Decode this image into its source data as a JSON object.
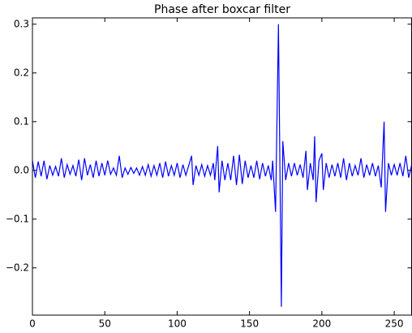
{
  "chart_data": {
    "type": "line",
    "title": "Phase after boxcar filter",
    "series": [
      {
        "name": null,
        "color": "#0000ff",
        "x": [
          0,
          2,
          4,
          6,
          8,
          10,
          12,
          14,
          16,
          18,
          20,
          22,
          24,
          26,
          28,
          30,
          32,
          34,
          36,
          38,
          40,
          42,
          44,
          46,
          48,
          50,
          52,
          54,
          56,
          58,
          60,
          62,
          64,
          66,
          68,
          70,
          72,
          74,
          76,
          78,
          80,
          82,
          84,
          86,
          88,
          90,
          92,
          94,
          96,
          98,
          100,
          102,
          104,
          106,
          108,
          110,
          111,
          113,
          115,
          117,
          119,
          121,
          123,
          125,
          126,
          128,
          129,
          131,
          133,
          135,
          137,
          139,
          141,
          143,
          145,
          147,
          149,
          151,
          153,
          155,
          157,
          159,
          161,
          163,
          165,
          166,
          168,
          170,
          172,
          173,
          175,
          177,
          179,
          181,
          183,
          185,
          187,
          189,
          190,
          192,
          194,
          195,
          196,
          198,
          200,
          201,
          203,
          205,
          207,
          209,
          211,
          213,
          215,
          217,
          219,
          221,
          223,
          225,
          227,
          229,
          231,
          233,
          235,
          237,
          239,
          241,
          243,
          244,
          246,
          248,
          250,
          252,
          254,
          256,
          258,
          260,
          262
        ],
        "values": [
          0.02,
          -0.015,
          0.018,
          -0.012,
          0.02,
          -0.018,
          0.01,
          -0.01,
          0.008,
          -0.012,
          0.025,
          -0.015,
          0.012,
          -0.008,
          0.01,
          -0.012,
          0.022,
          -0.02,
          0.025,
          -0.01,
          0.012,
          -0.015,
          0.02,
          -0.012,
          0.015,
          -0.01,
          0.02,
          -0.008,
          0.005,
          -0.01,
          0.03,
          -0.015,
          0.005,
          -0.008,
          0.006,
          -0.006,
          0.005,
          -0.01,
          0.008,
          -0.01,
          0.012,
          -0.012,
          0.01,
          -0.01,
          0.015,
          -0.015,
          0.018,
          -0.012,
          0.01,
          -0.01,
          0.015,
          -0.015,
          0.012,
          -0.01,
          0.01,
          0.03,
          -0.03,
          0.01,
          -0.01,
          0.012,
          -0.012,
          0.01,
          -0.01,
          0.015,
          -0.02,
          0.05,
          -0.045,
          0.02,
          -0.02,
          0.015,
          -0.02,
          0.03,
          -0.03,
          0.032,
          -0.028,
          0.02,
          -0.015,
          0.01,
          -0.015,
          0.02,
          -0.018,
          0.015,
          -0.012,
          0.01,
          -0.02,
          0.02,
          -0.085,
          0.3,
          -0.28,
          0.06,
          -0.02,
          0.015,
          -0.012,
          0.015,
          -0.01,
          0.012,
          -0.015,
          0.04,
          -0.04,
          0.015,
          -0.02,
          0.07,
          -0.065,
          0.02,
          0.035,
          -0.04,
          0.015,
          -0.015,
          0.012,
          -0.012,
          0.015,
          -0.015,
          0.025,
          -0.02,
          0.015,
          -0.012,
          0.01,
          -0.01,
          0.025,
          -0.015,
          0.012,
          -0.01,
          0.015,
          -0.012,
          0.01,
          -0.035,
          0.1,
          -0.085,
          0.015,
          -0.01,
          0.012,
          -0.01,
          0.015,
          -0.012,
          0.03,
          -0.015,
          0.01
        ]
      }
    ],
    "xlim": [
      0,
      262
    ],
    "ylim": [
      -0.297,
      0.313
    ],
    "xticks": [
      0,
      50,
      100,
      150,
      200,
      250
    ],
    "yticks": [
      {
        "value": -0.2,
        "label": "−0.2"
      },
      {
        "value": -0.1,
        "label": "−0.1"
      },
      {
        "value": 0,
        "label": "0.0"
      },
      0.1,
      0.2,
      0.3
    ]
  }
}
